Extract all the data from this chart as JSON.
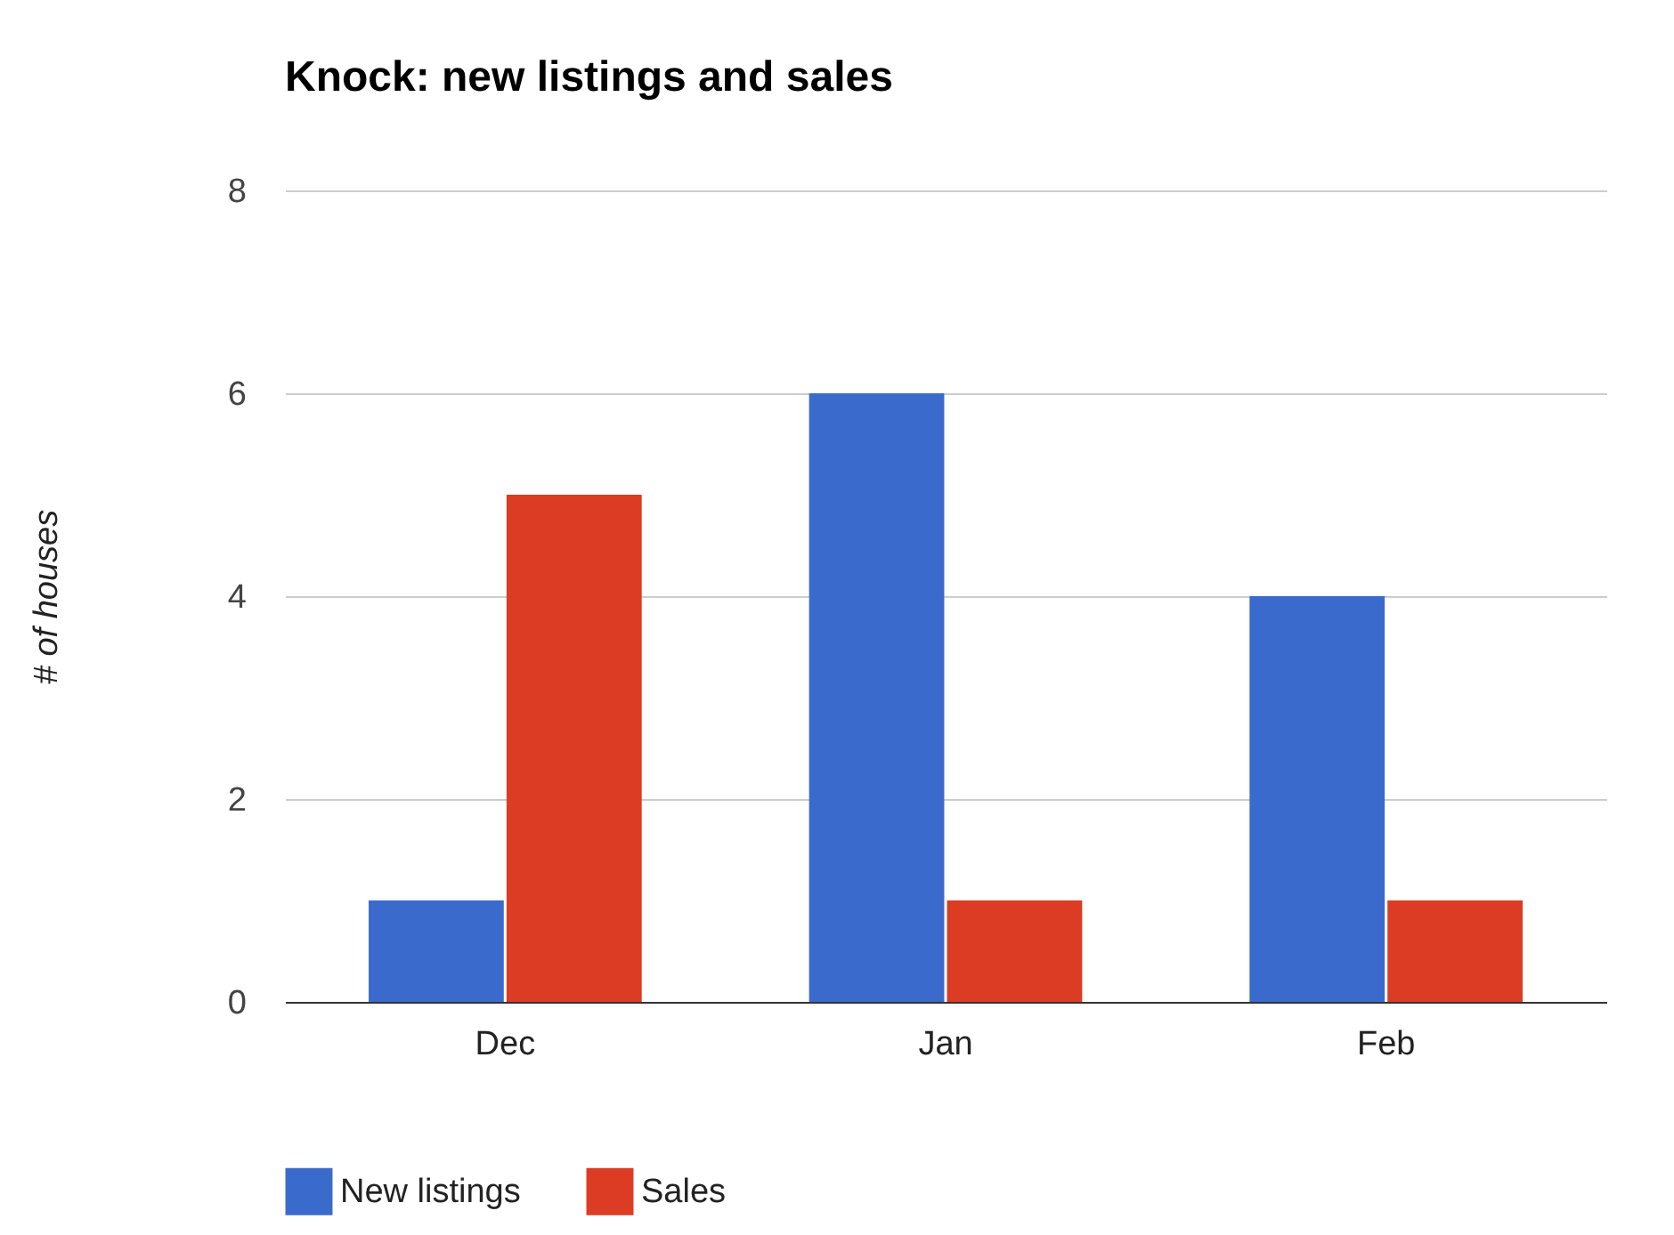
{
  "chart_data": {
    "type": "bar",
    "title": "Knock: new listings and sales",
    "ylabel": "# of houses",
    "categories": [
      "Dec",
      "Jan",
      "Feb"
    ],
    "series": [
      {
        "name": "New listings",
        "color": "#3a6bcc",
        "values": [
          1,
          6,
          4
        ]
      },
      {
        "name": "Sales",
        "color": "#db3c23",
        "values": [
          5,
          1,
          1
        ]
      }
    ],
    "ylim": [
      0,
      8
    ],
    "yticks": [
      0,
      2,
      4,
      6,
      8
    ],
    "grid": "y",
    "legend": "bottom"
  }
}
